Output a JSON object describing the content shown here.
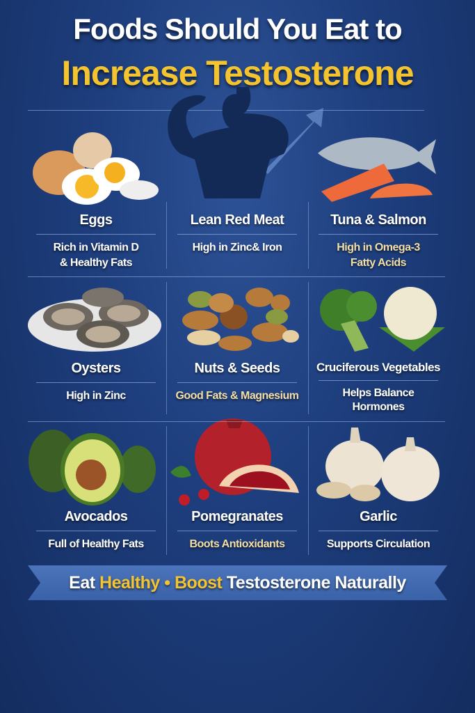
{
  "title": {
    "line1": "Foods Should You Eat to",
    "line2": "Increase Testosterone"
  },
  "foods": [
    {
      "name": "Eggs",
      "desc": [
        "Rich in Vitamin D",
        "& Healthy Fats"
      ],
      "icon": "eggs-icon"
    },
    {
      "name": "Lean Red Meat",
      "desc": [
        "High in Zinc& Iron"
      ],
      "icon": "muscular-man-silhouette-icon"
    },
    {
      "name": "Tuna & Salmon",
      "desc": [
        "High in Omega-3",
        "Fatty Acids"
      ],
      "icon": "fish-icon"
    },
    {
      "name": "Oysters",
      "desc": [
        "High in Zinc"
      ],
      "icon": "oysters-icon"
    },
    {
      "name": "Nuts & Seeds",
      "desc": [
        "Good Fats & Magnesium"
      ],
      "icon": "nuts-icon"
    },
    {
      "name": "Cruciferous Vegetables",
      "desc": [
        "Helps Balance",
        "Hormones"
      ],
      "icon": "broccoli-icon"
    },
    {
      "name": "Avocados",
      "desc": [
        "Full of Healthy Fats"
      ],
      "icon": "avocado-icon"
    },
    {
      "name": "Pomegranates",
      "desc": [
        "Boots Antioxidants"
      ],
      "icon": "pomegranate-icon"
    },
    {
      "name": "Garlic",
      "desc": [
        "Supports Circulation"
      ],
      "icon": "garlic-icon"
    }
  ],
  "banner": {
    "w1": "Eat",
    "w2": "Healthy",
    "sep": "•",
    "w3": "Boost",
    "w4": "Testosterone Naturally"
  },
  "colors": {
    "background": "#1d3d7c",
    "accent": "#f4c430",
    "cream": "#f3dfa6"
  }
}
